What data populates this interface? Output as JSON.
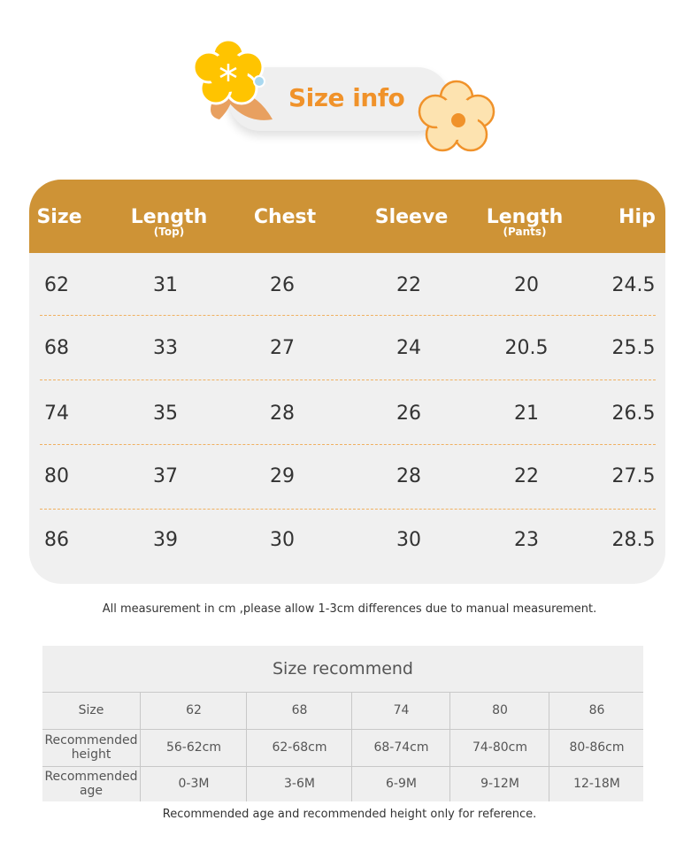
{
  "banner": {
    "title": "Size info"
  },
  "colors": {
    "header": "#CE9336",
    "title": "#F0922A",
    "dash": "#F0B060"
  },
  "size_table": {
    "headers": [
      {
        "label": "Size",
        "sub": ""
      },
      {
        "label": "Length",
        "sub": "(Top)"
      },
      {
        "label": "Chest",
        "sub": ""
      },
      {
        "label": "Sleeve",
        "sub": ""
      },
      {
        "label": "Length",
        "sub": "(Pants)"
      },
      {
        "label": "Hip",
        "sub": ""
      }
    ],
    "rows": [
      [
        "62",
        "31",
        "26",
        "22",
        "20",
        "24.5"
      ],
      [
        "68",
        "33",
        "27",
        "24",
        "20.5",
        "25.5"
      ],
      [
        "74",
        "35",
        "28",
        "26",
        "21",
        "26.5"
      ],
      [
        "80",
        "37",
        "29",
        "28",
        "22",
        "27.5"
      ],
      [
        "86",
        "39",
        "30",
        "30",
        "23",
        "28.5"
      ]
    ]
  },
  "note": "All measurement in cm ,please allow 1-3cm differences due to manual measurement.",
  "recommend": {
    "title": "Size recommend",
    "rows": [
      [
        "Size",
        "62",
        "68",
        "74",
        "80",
        "86"
      ],
      [
        "Recommended height",
        "56-62cm",
        "62-68cm",
        "68-74cm",
        "74-80cm",
        "80-86cm"
      ],
      [
        "Recommended age",
        "0-3M",
        "3-6M",
        "6-9M",
        "9-12M",
        "12-18M"
      ]
    ]
  },
  "footer_note": "Recommended age and recommended height only for reference."
}
